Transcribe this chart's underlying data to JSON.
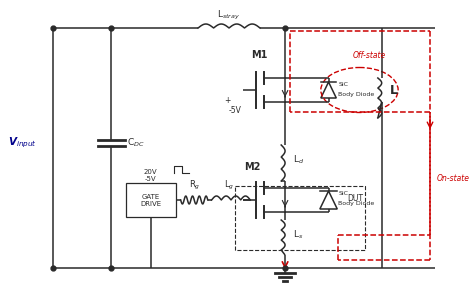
{
  "bg_color": "#ffffff",
  "line_color": "#2a2a2a",
  "red_dashed_color": "#cc0000",
  "blue_text_color": "#00008B",
  "fig_width": 4.74,
  "fig_height": 2.96,
  "dpi": 100,
  "labels": {
    "Vinput": "V$_{input}$",
    "CDC": "C$_{DC}$",
    "Lstray": "L$_{stray}$",
    "M1": "M1",
    "M2": "M2",
    "L": "L",
    "Ld": "L$_d$",
    "Lg": "L$_g$",
    "Ls": "L$_s$",
    "Rg": "R$_g$",
    "DUT": "DUT",
    "offstate": "Off-state",
    "onstate": "On-state",
    "SiC1": "SiC",
    "BodyDiode1": "Body Diode",
    "SiC2": "SiC",
    "BodyDiode2": "Body Diode",
    "gate_drive": "GATE\nDRIVE",
    "voltage_label": "20V\n-5V",
    "minus5V": "-5V",
    "plus": "+"
  }
}
